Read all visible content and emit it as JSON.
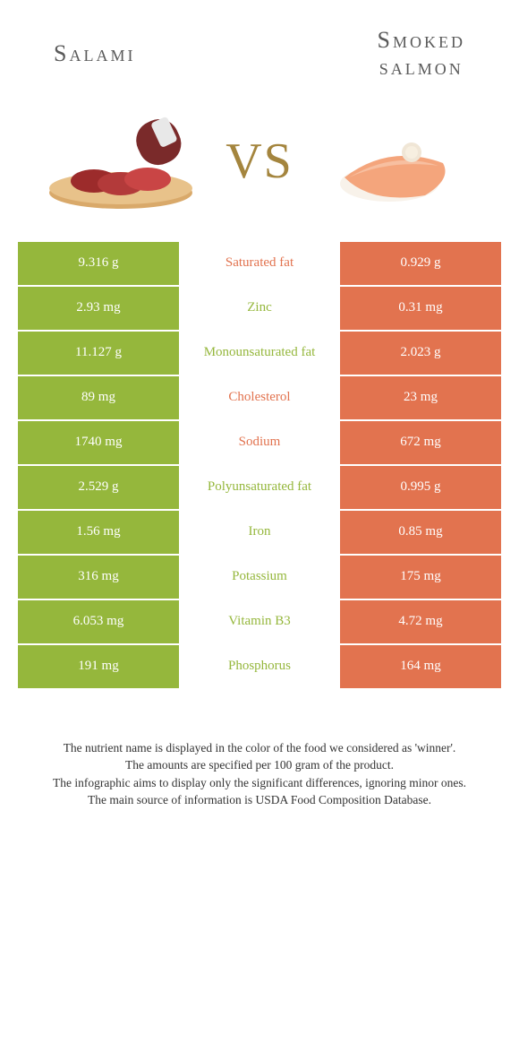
{
  "colors": {
    "left": "#95b73c",
    "right": "#e2734f",
    "vs": "#a4853e",
    "title": "#5a5a5a"
  },
  "titles": {
    "left": "Salami",
    "right_line1": "Smoked",
    "right_line2": "salmon"
  },
  "vs": "VS",
  "rows": [
    {
      "left": "9.316 g",
      "label": "Saturated fat",
      "right": "0.929 g",
      "winner": "right"
    },
    {
      "left": "2.93 mg",
      "label": "Zinc",
      "right": "0.31 mg",
      "winner": "left"
    },
    {
      "left": "11.127 g",
      "label": "Monounsaturated fat",
      "right": "2.023 g",
      "winner": "left"
    },
    {
      "left": "89 mg",
      "label": "Cholesterol",
      "right": "23 mg",
      "winner": "right"
    },
    {
      "left": "1740 mg",
      "label": "Sodium",
      "right": "672 mg",
      "winner": "right"
    },
    {
      "left": "2.529 g",
      "label": "Polyunsaturated fat",
      "right": "0.995 g",
      "winner": "left"
    },
    {
      "left": "1.56 mg",
      "label": "Iron",
      "right": "0.85 mg",
      "winner": "left"
    },
    {
      "left": "316 mg",
      "label": "Potassium",
      "right": "175 mg",
      "winner": "left"
    },
    {
      "left": "6.053 mg",
      "label": "Vitamin B3",
      "right": "4.72 mg",
      "winner": "left"
    },
    {
      "left": "191 mg",
      "label": "Phosphorus",
      "right": "164 mg",
      "winner": "left"
    }
  ],
  "footnotes": [
    "The nutrient name is displayed in the color of the food we considered as 'winner'.",
    "The amounts are specified per 100 gram of the product.",
    "The infographic aims to display only the significant differences, ignoring minor ones.",
    "The main source of information is USDA Food Composition Database."
  ]
}
